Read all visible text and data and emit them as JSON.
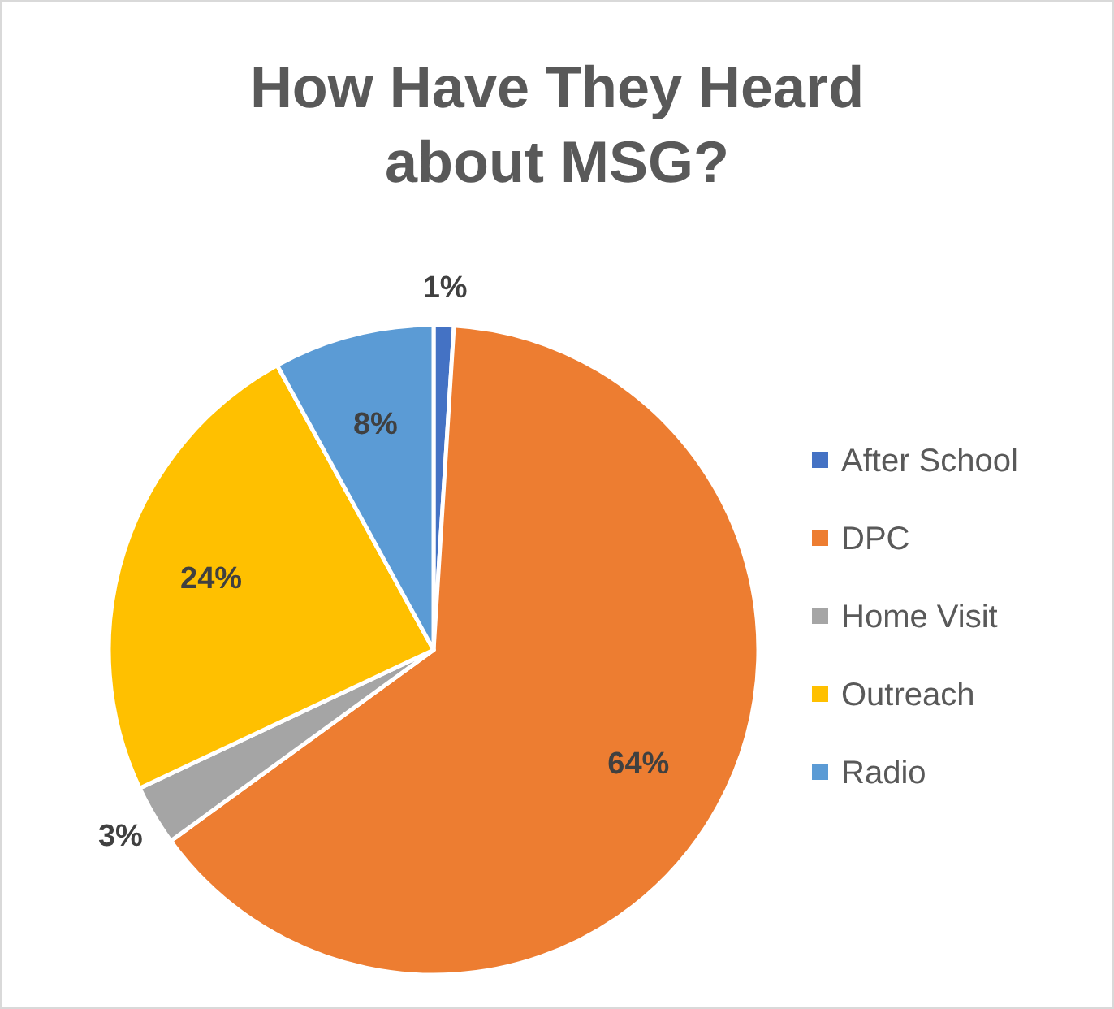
{
  "chart_data": {
    "type": "pie",
    "title": "How Have They Heard about MSG?",
    "categories": [
      "After School",
      "DPC",
      "Home Visit",
      "Outreach",
      "Radio"
    ],
    "values": [
      1,
      64,
      3,
      24,
      8
    ],
    "colors": [
      "#4472c4",
      "#ed7d31",
      "#a5a5a5",
      "#ffc000",
      "#5b9bd5"
    ],
    "value_labels": [
      "1%",
      "64%",
      "3%",
      "24%",
      "8%"
    ],
    "legend": "right"
  }
}
